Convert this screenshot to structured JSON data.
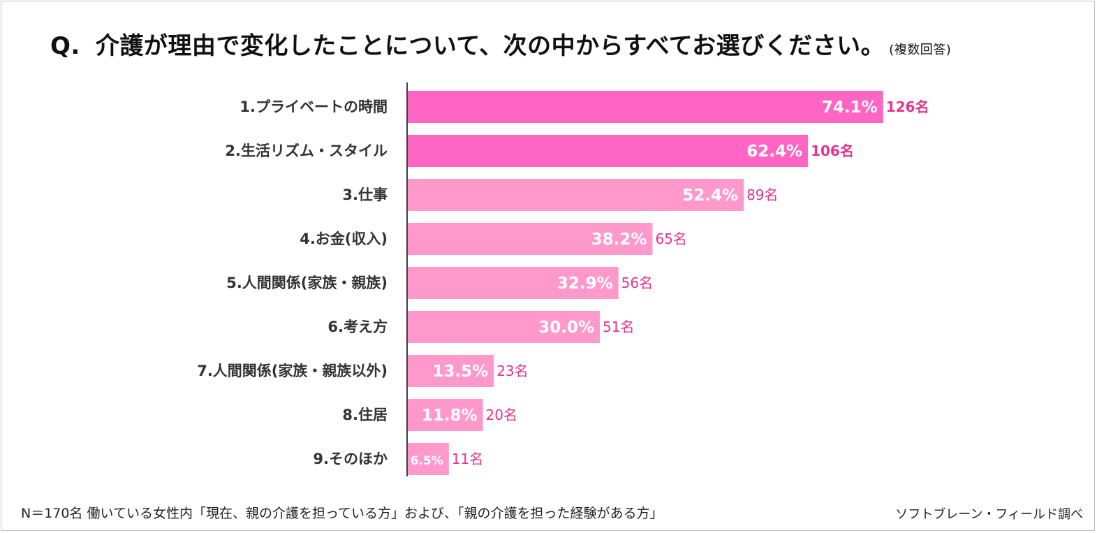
{
  "title": {
    "prefix": "Q.",
    "text": "介護が理由で変化したことについて、次の中からすべてお選びください。",
    "suffix": "(複数回答)"
  },
  "footnote": "N＝170名  働いている女性内「現在、親の介護を担っている方」および、「親の介護を担った経験がある方」",
  "source": "ソフトブレーン・フィールド調べ",
  "chart_data": {
    "type": "bar",
    "orientation": "horizontal",
    "categories": [
      "1.プライベートの時間",
      "2.生活リズム・スタイル",
      "3.仕事",
      "4.お金(収入)",
      "5.人間関係(家族・親族)",
      "6.考え方",
      "7.人間関係(家族・親族以外)",
      "8.住居",
      "9.そのほか"
    ],
    "values": [
      74.1,
      62.4,
      52.4,
      38.2,
      32.9,
      30.0,
      13.5,
      11.8,
      6.5
    ],
    "value_labels": [
      "74.1%",
      "62.4%",
      "52.4%",
      "38.2%",
      "32.9%",
      "30.0%",
      "13.5%",
      "11.8%",
      "6.5%"
    ],
    "counts": [
      "126名",
      "106名",
      "89名",
      "65名",
      "56名",
      "51名",
      "23名",
      "20名",
      "11名"
    ],
    "highlight_top": 2,
    "colors": {
      "highlight": "#ff66c4",
      "normal": "#ff99cc",
      "count_text": "#e6338f",
      "value_text": "#ffffff",
      "axis": "#404040",
      "category_text": "#333333"
    }
  }
}
